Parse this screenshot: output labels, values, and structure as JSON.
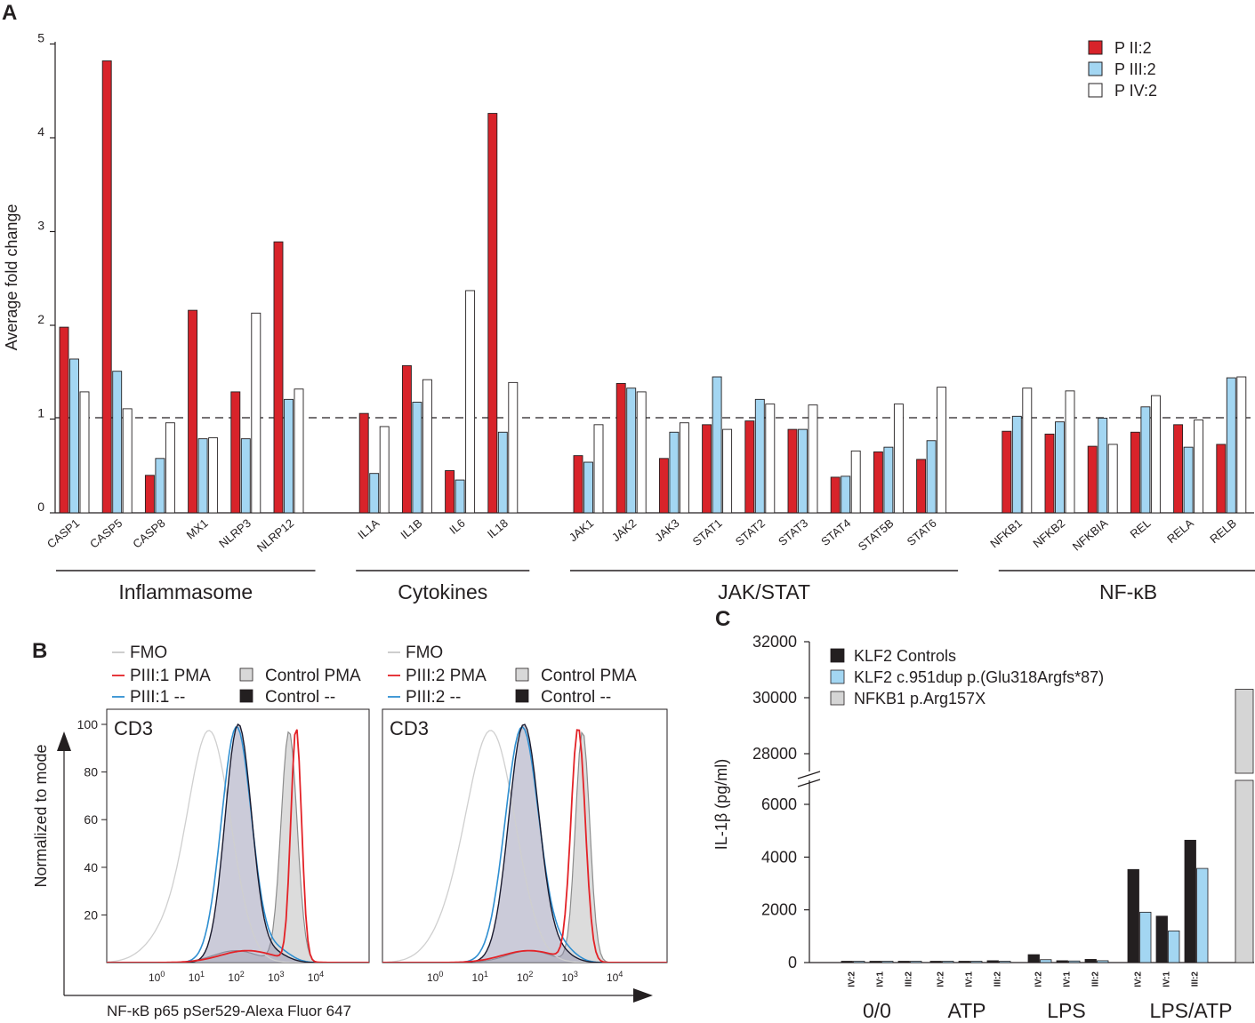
{
  "panels": {
    "a": "A",
    "b": "B",
    "c": "C"
  },
  "chart_data": [
    {
      "type": "bar",
      "ylabel": "Average fold change",
      "ylim": [
        0,
        5
      ],
      "yticks": [
        "0",
        "1",
        "2",
        "3",
        "4",
        "5"
      ],
      "reference_line": 1,
      "series": [
        {
          "name": "P II:2",
          "color": "#d8232a"
        },
        {
          "name": "P III:2",
          "color": "#a3d6f2"
        },
        {
          "name": "P IV:2",
          "color": "#ffffff"
        }
      ],
      "groups": [
        {
          "label": "Inflammasome",
          "genes": [
            {
              "name": "CASP1",
              "values": [
                1.98,
                1.64,
                1.29
              ]
            },
            {
              "name": "CASP5",
              "values": [
                4.82,
                1.51,
                1.11
              ]
            },
            {
              "name": "CASP8",
              "values": [
                0.4,
                0.58,
                0.96
              ]
            },
            {
              "name": "MX1",
              "values": [
                2.16,
                0.79,
                0.8
              ]
            },
            {
              "name": "NLRP3",
              "values": [
                1.29,
                0.79,
                2.13
              ]
            },
            {
              "name": "NLRP12",
              "values": [
                2.89,
                1.21,
                1.32
              ]
            }
          ]
        },
        {
          "label": "Cytokines",
          "genes": [
            {
              "name": "IL1A",
              "values": [
                1.06,
                0.42,
                0.92
              ]
            },
            {
              "name": "IL1B",
              "values": [
                1.57,
                1.18,
                1.42
              ]
            },
            {
              "name": "IL6",
              "values": [
                0.45,
                0.35,
                2.37
              ]
            },
            {
              "name": "IL18",
              "values": [
                4.26,
                0.86,
                1.39
              ]
            }
          ]
        },
        {
          "label": "JAK/STAT",
          "genes": [
            {
              "name": "JAK1",
              "values": [
                0.61,
                0.54,
                0.94
              ]
            },
            {
              "name": "JAK2",
              "values": [
                1.38,
                1.33,
                1.29
              ]
            },
            {
              "name": "JAK3",
              "values": [
                0.58,
                0.86,
                0.96
              ]
            },
            {
              "name": "STAT1",
              "values": [
                0.94,
                1.45,
                0.89
              ]
            },
            {
              "name": "STAT2",
              "values": [
                0.98,
                1.21,
                1.16
              ]
            },
            {
              "name": "STAT3",
              "values": [
                0.89,
                0.89,
                1.15
              ]
            },
            {
              "name": "STAT4",
              "values": [
                0.38,
                0.39,
                0.66
              ]
            },
            {
              "name": "STAT5B",
              "values": [
                0.65,
                0.7,
                1.16
              ]
            },
            {
              "name": "STAT6",
              "values": [
                0.57,
                0.77,
                1.34
              ]
            }
          ]
        },
        {
          "label": "NF-κB",
          "genes": [
            {
              "name": "NFKB1",
              "values": [
                0.87,
                1.03,
                1.33
              ]
            },
            {
              "name": "NFKB2",
              "values": [
                0.84,
                0.97,
                1.3
              ]
            },
            {
              "name": "NFKBIA",
              "values": [
                0.71,
                1.01,
                0.73
              ]
            },
            {
              "name": "REL",
              "values": [
                0.86,
                1.13,
                1.25
              ]
            },
            {
              "name": "RELA",
              "values": [
                0.94,
                0.7,
                0.99
              ]
            },
            {
              "name": "RELB",
              "values": [
                0.73,
                1.44,
                1.45
              ]
            }
          ]
        }
      ]
    },
    {
      "type": "histogram",
      "ylabel": "Normalized to mode",
      "xlabel": "NF-κB p65 pSer529-Alexa Fluor 647",
      "yticks": [
        "20",
        "40",
        "60",
        "80",
        "100"
      ],
      "xticks": [
        {
          "base": "10",
          "exp": "0"
        },
        {
          "base": "10",
          "exp": "1"
        },
        {
          "base": "10",
          "exp": "2"
        },
        {
          "base": "10",
          "exp": "3"
        },
        {
          "base": "10",
          "exp": "4"
        }
      ],
      "plots": [
        {
          "title": "CD3",
          "legend": [
            {
              "label": "FMO",
              "color": "#c8c8c8",
              "kind": "line"
            },
            {
              "label": "PIII:1 PMA",
              "color": "#e32227",
              "kind": "line"
            },
            {
              "label": "PIII:1 --",
              "color": "#2f8fd1",
              "kind": "line"
            },
            {
              "label": "Control PMA",
              "color": "#d8d8d8",
              "kind": "box"
            },
            {
              "label": "Control --",
              "color": "#231f20",
              "kind": "box"
            }
          ]
        },
        {
          "title": "CD3",
          "legend": [
            {
              "label": "FMO",
              "color": "#c8c8c8",
              "kind": "line"
            },
            {
              "label": "PIII:2 PMA",
              "color": "#e32227",
              "kind": "line"
            },
            {
              "label": "PIII:2 --",
              "color": "#2f8fd1",
              "kind": "line"
            },
            {
              "label": "Control PMA",
              "color": "#d8d8d8",
              "kind": "box"
            },
            {
              "label": "Control --",
              "color": "#231f20",
              "kind": "box"
            }
          ]
        }
      ]
    },
    {
      "type": "bar",
      "ylabel": "IL-1β (pg/ml)",
      "axis_break": [
        7000,
        27000
      ],
      "yticks_lower": [
        "0",
        "2000",
        "4000",
        "6000"
      ],
      "yticks_upper": [
        "28000",
        "30000",
        "32000"
      ],
      "series": [
        {
          "name": "KLF2 Controls",
          "color": "#231f20"
        },
        {
          "name": "KLF2 c.951dup p.(Glu318Argfs*87)",
          "color": "#a3d6f2"
        },
        {
          "name": "NFKB1 p.Arg157X",
          "color": "#d5d5d5"
        }
      ],
      "conditions": [
        {
          "label": "0/0",
          "bars": [
            {
              "series": 0,
              "value": 20
            },
            {
              "series": 1,
              "value": 10
            },
            {
              "series": 0,
              "value": 20
            },
            {
              "series": 1,
              "value": 10
            },
            {
              "series": 0,
              "value": 20
            },
            {
              "series": 1,
              "value": 10
            }
          ]
        },
        {
          "label": "ATP",
          "bars": [
            {
              "series": 0,
              "value": 30
            },
            {
              "series": 1,
              "value": 15
            },
            {
              "series": 0,
              "value": 40
            },
            {
              "series": 1,
              "value": 50
            },
            {
              "series": 0,
              "value": 70
            },
            {
              "series": 1,
              "value": 30
            }
          ]
        },
        {
          "label": "LPS",
          "bars": [
            {
              "series": 0,
              "value": 300
            },
            {
              "series": 1,
              "value": 110
            },
            {
              "series": 0,
              "value": 70
            },
            {
              "series": 1,
              "value": 60
            },
            {
              "series": 0,
              "value": 120
            },
            {
              "series": 1,
              "value": 70
            }
          ]
        },
        {
          "label": "LPS/ATP",
          "bars": [
            {
              "series": 0,
              "value": 3530
            },
            {
              "series": 1,
              "value": 1910
            },
            {
              "series": 0,
              "value": 1760
            },
            {
              "series": 1,
              "value": 1200
            },
            {
              "series": 0,
              "value": 4640
            },
            {
              "series": 1,
              "value": 3570
            },
            {
              "series": 2,
              "value": 30300
            }
          ]
        }
      ],
      "sample_labels": [
        "IV:2",
        "IV:1",
        "III:2"
      ]
    }
  ]
}
